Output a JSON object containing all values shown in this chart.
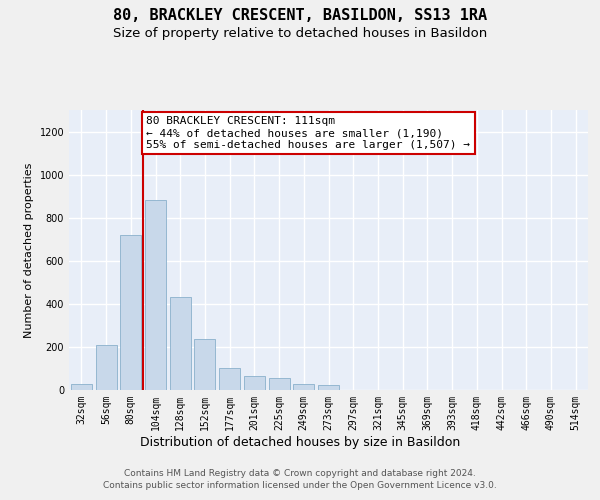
{
  "title": "80, BRACKLEY CRESCENT, BASILDON, SS13 1RA",
  "subtitle": "Size of property relative to detached houses in Basildon",
  "xlabel": "Distribution of detached houses by size in Basildon",
  "ylabel": "Number of detached properties",
  "categories": [
    "32sqm",
    "56sqm",
    "80sqm",
    "104sqm",
    "128sqm",
    "152sqm",
    "177sqm",
    "201sqm",
    "225sqm",
    "249sqm",
    "273sqm",
    "297sqm",
    "321sqm",
    "345sqm",
    "369sqm",
    "393sqm",
    "418sqm",
    "442sqm",
    "466sqm",
    "490sqm",
    "514sqm"
  ],
  "bar_heights": [
    30,
    210,
    720,
    880,
    430,
    235,
    100,
    65,
    55,
    30,
    25,
    0,
    0,
    0,
    0,
    0,
    0,
    0,
    0,
    0,
    0
  ],
  "bar_color": "#c8d8ea",
  "bar_edge_color": "#8ab0cc",
  "background_color": "#e8eef8",
  "grid_color": "#ffffff",
  "annotation_box_text": "80 BRACKLEY CRESCENT: 111sqm\n← 44% of detached houses are smaller (1,190)\n55% of semi-detached houses are larger (1,507) →",
  "annotation_box_edge_color": "#cc0000",
  "annotation_box_facecolor": "#ffffff",
  "vline_color": "#cc0000",
  "vline_x": 2.5,
  "ylim": [
    0,
    1300
  ],
  "yticks": [
    0,
    200,
    400,
    600,
    800,
    1000,
    1200
  ],
  "footer_line1": "Contains HM Land Registry data © Crown copyright and database right 2024.",
  "footer_line2": "Contains public sector information licensed under the Open Government Licence v3.0.",
  "title_fontsize": 11,
  "subtitle_fontsize": 9.5,
  "annotation_fontsize": 8,
  "xlabel_fontsize": 9,
  "ylabel_fontsize": 8,
  "tick_fontsize": 7,
  "footer_fontsize": 6.5,
  "fig_facecolor": "#f0f0f0"
}
